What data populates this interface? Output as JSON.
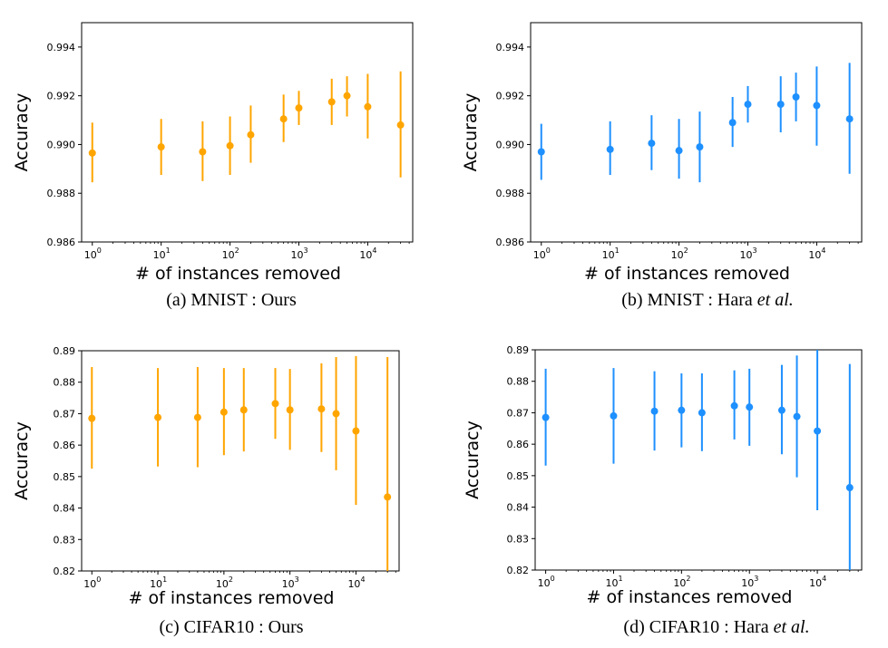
{
  "colors": {
    "ours": "#FFA500",
    "hara": "#1E90FF",
    "axis": "#000000"
  },
  "chart_data": [
    {
      "id": "a",
      "type": "scatter",
      "title": "",
      "caption_main": "(a) MNIST : Ours",
      "caption_italic": "",
      "xlabel": "# of instances removed",
      "ylabel": "Accuracy",
      "xscale": "log",
      "xlim": [
        0.7,
        45000
      ],
      "ylim": [
        0.986,
        0.995
      ],
      "yticks": [
        0.986,
        0.988,
        0.99,
        0.992,
        0.994
      ],
      "ytick_labels": [
        "0.986",
        "0.988",
        "0.990",
        "0.992",
        "0.994"
      ],
      "xticks": [
        1,
        10,
        100,
        1000,
        10000
      ],
      "xtick_labels": [
        [
          "10",
          "0"
        ],
        [
          "10",
          "1"
        ],
        [
          "10",
          "2"
        ],
        [
          "10",
          "3"
        ],
        [
          "10",
          "4"
        ]
      ],
      "color_key": "ours",
      "points": [
        {
          "x": 1,
          "y": 0.98965,
          "lo": 0.98845,
          "hi": 0.9909
        },
        {
          "x": 10,
          "y": 0.9899,
          "lo": 0.98875,
          "hi": 0.99105
        },
        {
          "x": 40,
          "y": 0.9897,
          "lo": 0.9885,
          "hi": 0.99095
        },
        {
          "x": 100,
          "y": 0.98995,
          "lo": 0.98875,
          "hi": 0.99115
        },
        {
          "x": 200,
          "y": 0.9904,
          "lo": 0.98925,
          "hi": 0.9916
        },
        {
          "x": 600,
          "y": 0.99105,
          "lo": 0.9901,
          "hi": 0.99205
        },
        {
          "x": 1000,
          "y": 0.9915,
          "lo": 0.9908,
          "hi": 0.9922
        },
        {
          "x": 3000,
          "y": 0.99175,
          "lo": 0.9908,
          "hi": 0.9927
        },
        {
          "x": 5000,
          "y": 0.992,
          "lo": 0.99115,
          "hi": 0.9928
        },
        {
          "x": 10000,
          "y": 0.99155,
          "lo": 0.99025,
          "hi": 0.9929
        },
        {
          "x": 30000,
          "y": 0.9908,
          "lo": 0.98865,
          "hi": 0.993
        }
      ]
    },
    {
      "id": "b",
      "type": "scatter",
      "title": "",
      "caption_main": "(b) MNIST : Hara ",
      "caption_italic": "et al.",
      "xlabel": "# of instances removed",
      "ylabel": "Accuracy",
      "xscale": "log",
      "xlim": [
        0.7,
        45000
      ],
      "ylim": [
        0.986,
        0.995
      ],
      "yticks": [
        0.986,
        0.988,
        0.99,
        0.992,
        0.994
      ],
      "ytick_labels": [
        "0.986",
        "0.988",
        "0.990",
        "0.992",
        "0.994"
      ],
      "xticks": [
        1,
        10,
        100,
        1000,
        10000
      ],
      "xtick_labels": [
        [
          "10",
          "0"
        ],
        [
          "10",
          "1"
        ],
        [
          "10",
          "2"
        ],
        [
          "10",
          "3"
        ],
        [
          "10",
          "4"
        ]
      ],
      "color_key": "hara",
      "points": [
        {
          "x": 1,
          "y": 0.9897,
          "lo": 0.98855,
          "hi": 0.99085
        },
        {
          "x": 10,
          "y": 0.9898,
          "lo": 0.98875,
          "hi": 0.99095
        },
        {
          "x": 40,
          "y": 0.99005,
          "lo": 0.98895,
          "hi": 0.9912
        },
        {
          "x": 100,
          "y": 0.98975,
          "lo": 0.9886,
          "hi": 0.99105
        },
        {
          "x": 200,
          "y": 0.9899,
          "lo": 0.98845,
          "hi": 0.99135
        },
        {
          "x": 600,
          "y": 0.9909,
          "lo": 0.9899,
          "hi": 0.99195
        },
        {
          "x": 1000,
          "y": 0.99165,
          "lo": 0.9909,
          "hi": 0.9924
        },
        {
          "x": 3000,
          "y": 0.99165,
          "lo": 0.9905,
          "hi": 0.9928
        },
        {
          "x": 5000,
          "y": 0.99195,
          "lo": 0.99095,
          "hi": 0.99295
        },
        {
          "x": 10000,
          "y": 0.9916,
          "lo": 0.98995,
          "hi": 0.9932
        },
        {
          "x": 30000,
          "y": 0.99105,
          "lo": 0.9888,
          "hi": 0.99335
        }
      ]
    },
    {
      "id": "c",
      "type": "scatter",
      "title": "",
      "caption_main": "(c) CIFAR10 : Ours",
      "caption_italic": "",
      "xlabel": "# of instances removed",
      "ylabel": "Accuracy",
      "xscale": "log",
      "xlim": [
        0.7,
        45000
      ],
      "ylim": [
        0.82,
        0.89
      ],
      "yticks": [
        0.82,
        0.83,
        0.84,
        0.85,
        0.86,
        0.87,
        0.88,
        0.89
      ],
      "ytick_labels": [
        "0.82",
        "0.83",
        "0.84",
        "0.85",
        "0.86",
        "0.87",
        "0.88",
        "0.89"
      ],
      "xticks": [
        1,
        10,
        100,
        1000,
        10000
      ],
      "xtick_labels": [
        [
          "10",
          "0"
        ],
        [
          "10",
          "1"
        ],
        [
          "10",
          "2"
        ],
        [
          "10",
          "3"
        ],
        [
          "10",
          "4"
        ]
      ],
      "color_key": "ours",
      "points": [
        {
          "x": 1,
          "y": 0.8685,
          "lo": 0.8525,
          "hi": 0.8848
        },
        {
          "x": 10,
          "y": 0.8688,
          "lo": 0.8532,
          "hi": 0.8845
        },
        {
          "x": 40,
          "y": 0.8688,
          "lo": 0.853,
          "hi": 0.8848
        },
        {
          "x": 100,
          "y": 0.8705,
          "lo": 0.8568,
          "hi": 0.8845
        },
        {
          "x": 200,
          "y": 0.8712,
          "lo": 0.858,
          "hi": 0.8845
        },
        {
          "x": 600,
          "y": 0.8732,
          "lo": 0.862,
          "hi": 0.8845
        },
        {
          "x": 1000,
          "y": 0.8712,
          "lo": 0.8585,
          "hi": 0.8842
        },
        {
          "x": 3000,
          "y": 0.8715,
          "lo": 0.8578,
          "hi": 0.886
        },
        {
          "x": 5000,
          "y": 0.87,
          "lo": 0.852,
          "hi": 0.888
        },
        {
          "x": 10000,
          "y": 0.8645,
          "lo": 0.841,
          "hi": 0.8883
        },
        {
          "x": 30000,
          "y": 0.8435,
          "lo": 0.82,
          "hi": 0.888
        }
      ]
    },
    {
      "id": "d",
      "type": "scatter",
      "title": "",
      "caption_main": "(d) CIFAR10 : Hara ",
      "caption_italic": "et al.",
      "xlabel": "# of instances removed",
      "ylabel": "Accuracy",
      "xscale": "log",
      "xlim": [
        0.7,
        45000
      ],
      "ylim": [
        0.82,
        0.89
      ],
      "yticks": [
        0.82,
        0.83,
        0.84,
        0.85,
        0.86,
        0.87,
        0.88,
        0.89
      ],
      "ytick_labels": [
        "0.82",
        "0.83",
        "0.84",
        "0.85",
        "0.86",
        "0.87",
        "0.88",
        "0.89"
      ],
      "xticks": [
        1,
        10,
        100,
        1000,
        10000
      ],
      "xtick_labels": [
        [
          "10",
          "0"
        ],
        [
          "10",
          "1"
        ],
        [
          "10",
          "2"
        ],
        [
          "10",
          "3"
        ],
        [
          "10",
          "4"
        ]
      ],
      "color_key": "hara",
      "points": [
        {
          "x": 1,
          "y": 0.8685,
          "lo": 0.8532,
          "hi": 0.884
        },
        {
          "x": 10,
          "y": 0.869,
          "lo": 0.8538,
          "hi": 0.8842
        },
        {
          "x": 40,
          "y": 0.8705,
          "lo": 0.858,
          "hi": 0.8832
        },
        {
          "x": 100,
          "y": 0.8708,
          "lo": 0.859,
          "hi": 0.8825
        },
        {
          "x": 200,
          "y": 0.87,
          "lo": 0.8578,
          "hi": 0.8825
        },
        {
          "x": 600,
          "y": 0.8722,
          "lo": 0.8615,
          "hi": 0.8835
        },
        {
          "x": 1000,
          "y": 0.8718,
          "lo": 0.8595,
          "hi": 0.884
        },
        {
          "x": 3000,
          "y": 0.8708,
          "lo": 0.8568,
          "hi": 0.8852
        },
        {
          "x": 5000,
          "y": 0.8688,
          "lo": 0.8495,
          "hi": 0.8882
        },
        {
          "x": 10000,
          "y": 0.8642,
          "lo": 0.839,
          "hi": 0.89
        },
        {
          "x": 30000,
          "y": 0.8462,
          "lo": 0.82,
          "hi": 0.8855
        }
      ]
    }
  ]
}
